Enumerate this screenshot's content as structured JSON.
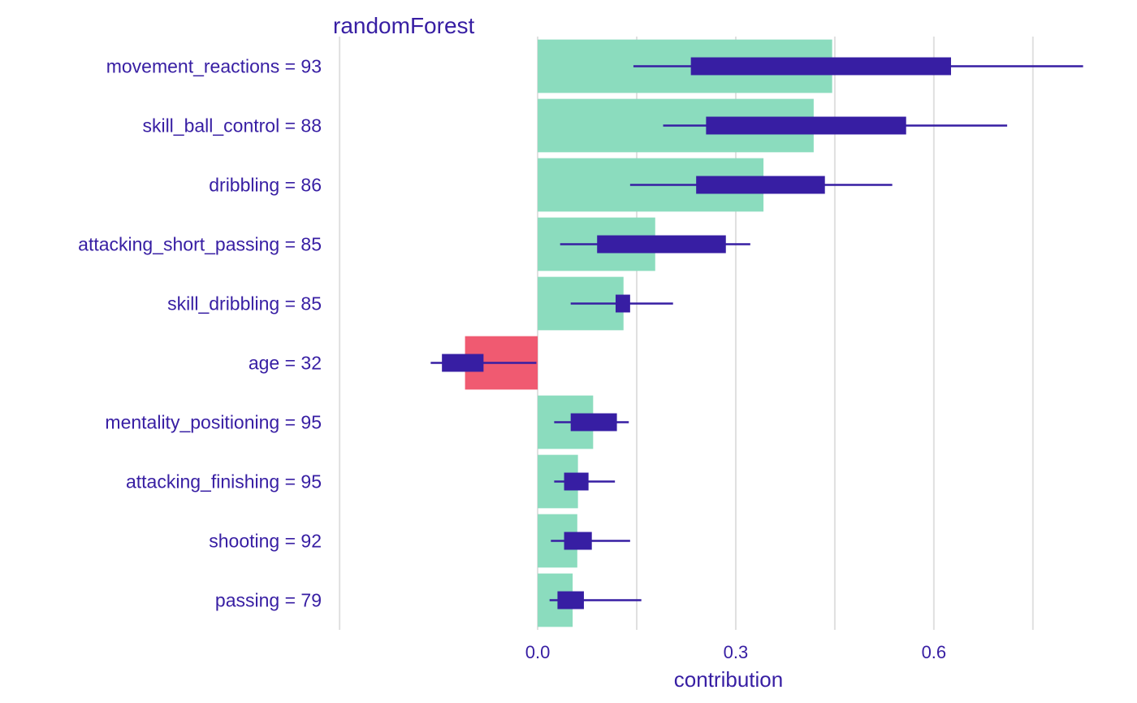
{
  "chart_data": {
    "type": "bar",
    "title": "randomForest",
    "xlabel": "contribution",
    "ylabel": "",
    "xlim": [
      -0.31,
      0.84
    ],
    "xticks": [
      0.0,
      0.3,
      0.6
    ],
    "xtick_labels": [
      "0.0",
      "0.3",
      "0.6"
    ],
    "minor_gridlines": [
      -0.3,
      0.15,
      0.45,
      0.75
    ],
    "categories": [
      "movement_reactions = 93",
      "skill_ball_control = 88",
      "dribbling = 86",
      "attacking_short_passing = 85",
      "skill_dribbling = 85",
      "age = 32",
      "mentality_positioning = 95",
      "attacking_finishing = 95",
      "shooting = 92",
      "passing = 79"
    ],
    "values": [
      0.446,
      0.418,
      0.342,
      0.178,
      0.13,
      -0.11,
      0.084,
      0.061,
      0.06,
      0.053
    ],
    "boxplots": [
      {
        "min": 0.145,
        "q1": 0.232,
        "q3": 0.626,
        "max": 0.826
      },
      {
        "min": 0.19,
        "q1": 0.255,
        "q3": 0.558,
        "max": 0.711
      },
      {
        "min": 0.14,
        "q1": 0.24,
        "q3": 0.435,
        "max": 0.537
      },
      {
        "min": 0.034,
        "q1": 0.09,
        "q3": 0.285,
        "max": 0.322
      },
      {
        "min": 0.05,
        "q1": 0.118,
        "q3": 0.14,
        "max": 0.205
      },
      {
        "min": -0.162,
        "q1": -0.145,
        "q3": -0.082,
        "max": -0.002
      },
      {
        "min": 0.025,
        "q1": 0.05,
        "q3": 0.12,
        "max": 0.138
      },
      {
        "min": 0.025,
        "q1": 0.04,
        "q3": 0.077,
        "max": 0.117
      },
      {
        "min": 0.02,
        "q1": 0.04,
        "q3": 0.082,
        "max": 0.14
      },
      {
        "min": 0.018,
        "q1": 0.03,
        "q3": 0.07,
        "max": 0.157
      }
    ],
    "colors": {
      "positive": "#8bdcbe",
      "negative": "#f05a71",
      "boxplot": "#371ea3",
      "text": "#371ea3",
      "grid": "#e0e0e0"
    }
  }
}
